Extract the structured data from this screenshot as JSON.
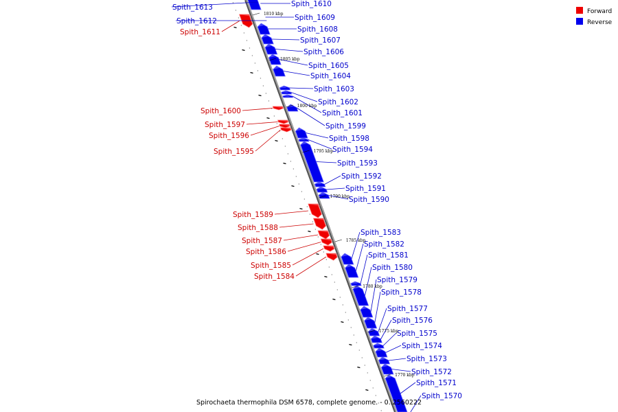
{
  "legend": {
    "forward_label": "Forward",
    "reverse_label": "Reverse",
    "forward_color": "#ee0000",
    "reverse_color": "#0000ee"
  },
  "colors": {
    "forward": "#ee0000",
    "forward_light": "#ff6a6a",
    "reverse": "#0000ee",
    "reverse_light": "#6a6aff",
    "backbone": "#808080",
    "label_forward": "#cc0000",
    "label_reverse": "#0000cc"
  },
  "caption": "Spirochaeta thermophila DSM 6578, complete genome. - 0..2560222",
  "ticks": [
    {
      "label": "1810 kbp"
    },
    {
      "label": "1805 kbp"
    },
    {
      "label": "1800 kbp"
    },
    {
      "label": "1795 kbp"
    },
    {
      "label": "1790 kbp"
    },
    {
      "label": "1785 kbp"
    },
    {
      "label": "1780 kbp"
    },
    {
      "label": "1775 kbp"
    },
    {
      "label": "1770 kbp"
    }
  ],
  "genes": [
    {
      "name": "Spith_1613",
      "strand": "reverse"
    },
    {
      "name": "Spith_1612",
      "strand": "reverse"
    },
    {
      "name": "Spith_1611",
      "strand": "forward"
    },
    {
      "name": "Spith_1610",
      "strand": "reverse"
    },
    {
      "name": "Spith_1609",
      "strand": "reverse"
    },
    {
      "name": "Spith_1608",
      "strand": "reverse"
    },
    {
      "name": "Spith_1607",
      "strand": "reverse"
    },
    {
      "name": "Spith_1606",
      "strand": "reverse"
    },
    {
      "name": "Spith_1605",
      "strand": "reverse"
    },
    {
      "name": "Spith_1604",
      "strand": "reverse"
    },
    {
      "name": "Spith_1603",
      "strand": "reverse"
    },
    {
      "name": "Spith_1602",
      "strand": "reverse"
    },
    {
      "name": "Spith_1601",
      "strand": "reverse"
    },
    {
      "name": "Spith_1600",
      "strand": "forward"
    },
    {
      "name": "Spith_1599",
      "strand": "reverse"
    },
    {
      "name": "Spith_1598",
      "strand": "reverse"
    },
    {
      "name": "Spith_1597",
      "strand": "forward"
    },
    {
      "name": "Spith_1596",
      "strand": "forward"
    },
    {
      "name": "Spith_1595",
      "strand": "forward"
    },
    {
      "name": "Spith_1594",
      "strand": "reverse"
    },
    {
      "name": "Spith_1593",
      "strand": "reverse"
    },
    {
      "name": "Spith_1592",
      "strand": "reverse"
    },
    {
      "name": "Spith_1591",
      "strand": "reverse"
    },
    {
      "name": "Spith_1590",
      "strand": "reverse"
    },
    {
      "name": "Spith_1589",
      "strand": "forward"
    },
    {
      "name": "Spith_1588",
      "strand": "forward"
    },
    {
      "name": "Spith_1587",
      "strand": "forward"
    },
    {
      "name": "Spith_1586",
      "strand": "forward"
    },
    {
      "name": "Spith_1585",
      "strand": "forward"
    },
    {
      "name": "Spith_1584",
      "strand": "forward"
    },
    {
      "name": "Spith_1583",
      "strand": "reverse"
    },
    {
      "name": "Spith_1582",
      "strand": "reverse"
    },
    {
      "name": "Spith_1581",
      "strand": "reverse"
    },
    {
      "name": "Spith_1580",
      "strand": "reverse"
    },
    {
      "name": "Spith_1579",
      "strand": "reverse"
    },
    {
      "name": "Spith_1578",
      "strand": "reverse"
    },
    {
      "name": "Spith_1577",
      "strand": "reverse"
    },
    {
      "name": "Spith_1576",
      "strand": "reverse"
    },
    {
      "name": "Spith_1575",
      "strand": "reverse"
    },
    {
      "name": "Spith_1574",
      "strand": "reverse"
    },
    {
      "name": "Spith_1573",
      "strand": "reverse"
    },
    {
      "name": "Spith_1572",
      "strand": "reverse"
    },
    {
      "name": "Spith_1571",
      "strand": "reverse"
    },
    {
      "name": "Spith_1570",
      "strand": "reverse"
    }
  ]
}
